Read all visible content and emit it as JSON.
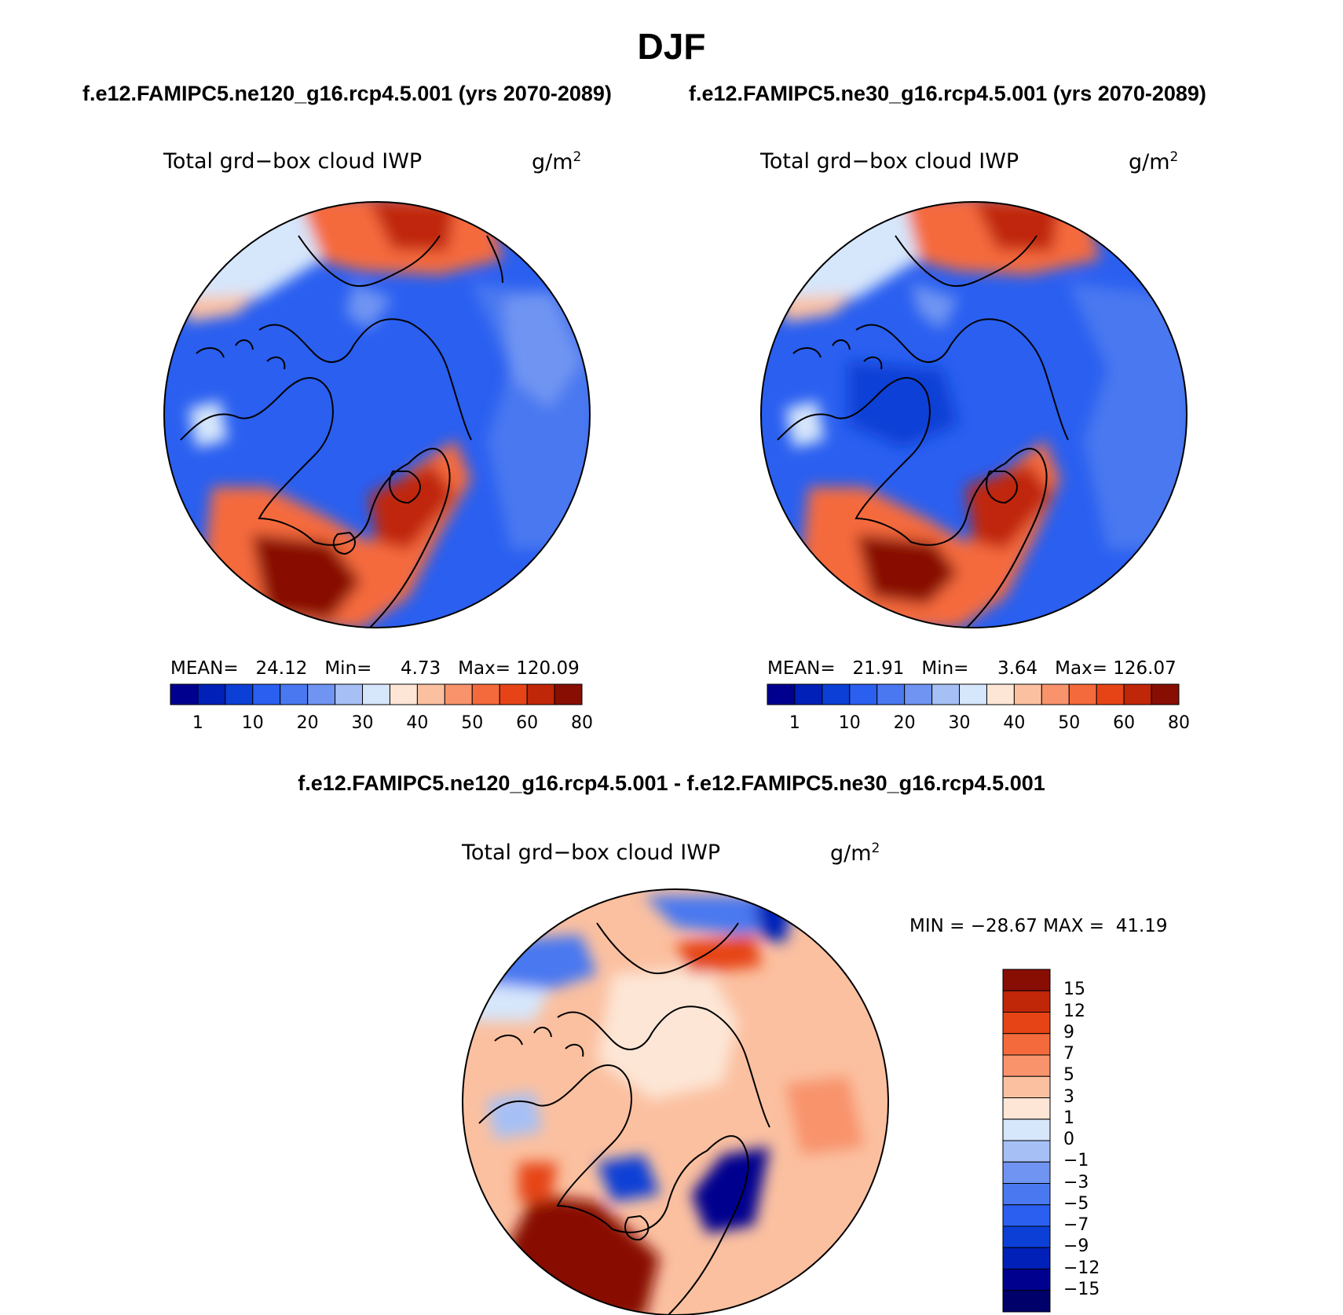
{
  "title": "DJF",
  "panels": [
    {
      "subtitle": "f.e12.FAMIPC5.ne120_g16.rcp4.5.001 (yrs 2070-2089)",
      "variable": "Total grd−box cloud IWP",
      "units": "g/m",
      "units_exp": "2",
      "stats": {
        "mean_label": "MEAN=",
        "mean": "24.12",
        "min_label": "Min=",
        "min": "4.73",
        "max_label": "Max=",
        "max": "120.09"
      }
    },
    {
      "subtitle": "f.e12.FAMIPC5.ne30_g16.rcp4.5.001 (yrs 2070-2089)",
      "variable": "Total grd−box cloud IWP",
      "units": "g/m",
      "units_exp": "2",
      "stats": {
        "mean_label": "MEAN=",
        "mean": "21.91",
        "min_label": "Min=",
        "min": "3.64",
        "max_label": "Max=",
        "max": "126.07"
      }
    }
  ],
  "difference": {
    "title": "f.e12.FAMIPC5.ne120_g16.rcp4.5.001 - f.e12.FAMIPC5.ne30_g16.rcp4.5.001",
    "variable": "Total grd−box cloud IWP",
    "units": "g/m",
    "units_exp": "2",
    "minmax_text": "MIN = −28.67 MAX =  41.19"
  },
  "chart_data": [
    {
      "type": "heatmap",
      "projection": "north polar stereographic",
      "title": "Total grd−box cloud IWP",
      "units": "g/m2",
      "mean": 24.12,
      "min": 4.73,
      "max": 120.09,
      "colorbar_ticks": [
        "1",
        "10",
        "20",
        "30",
        "40",
        "50",
        "60",
        "80"
      ],
      "colorbar_colors": [
        "#00008f",
        "#0020b8",
        "#0b3fd6",
        "#2a5ff0",
        "#4a78f0",
        "#7094f2",
        "#a6c0f6",
        "#d6e6fb",
        "#fde6d6",
        "#fbc0a0",
        "#f8936c",
        "#f56a3c",
        "#e64416",
        "#c02608",
        "#880e04"
      ]
    },
    {
      "type": "heatmap",
      "projection": "north polar stereographic",
      "title": "Total grd−box cloud IWP",
      "units": "g/m2",
      "mean": 21.91,
      "min": 3.64,
      "max": 126.07,
      "colorbar_ticks": [
        "1",
        "10",
        "20",
        "30",
        "40",
        "50",
        "60",
        "80"
      ],
      "colorbar_colors": [
        "#00008f",
        "#0020b8",
        "#0b3fd6",
        "#2a5ff0",
        "#4a78f0",
        "#7094f2",
        "#a6c0f6",
        "#d6e6fb",
        "#fde6d6",
        "#fbc0a0",
        "#f8936c",
        "#f56a3c",
        "#e64416",
        "#c02608",
        "#880e04"
      ]
    },
    {
      "type": "heatmap",
      "projection": "north polar stereographic",
      "title": "difference",
      "units": "g/m2",
      "min": -28.67,
      "max": 41.19,
      "colorbar_ticks": [
        "15",
        "12",
        "9",
        "7",
        "5",
        "3",
        "1",
        "0",
        "−1",
        "−3",
        "−5",
        "−7",
        "−9",
        "−12",
        "−15"
      ],
      "colorbar_colors": [
        "#880e04",
        "#c02608",
        "#e64416",
        "#f56a3c",
        "#f8936c",
        "#fbc0a0",
        "#fde6d6",
        "#d6e6fb",
        "#a6c0f6",
        "#7094f2",
        "#4a78f0",
        "#2a5ff0",
        "#0b3fd6",
        "#0020b8",
        "#00008f",
        "#00006a"
      ]
    }
  ]
}
